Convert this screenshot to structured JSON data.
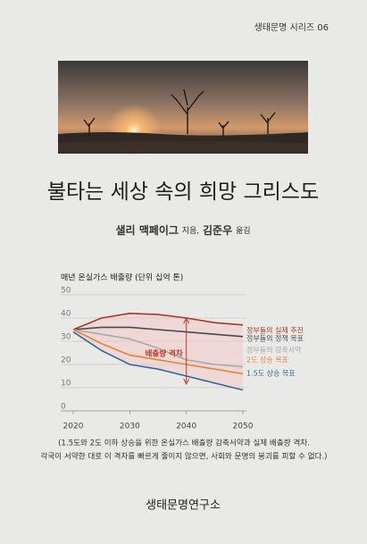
{
  "series_label": "생태문명 시리즈 06",
  "title": "불타는 세상 속의 희망 그리스도",
  "author": "샐리 맥페이그",
  "author_role": "지음,",
  "translator": "김준우",
  "translator_role": "옮김",
  "chart_data": {
    "type": "line",
    "title": "매년 온실가스 배출량 (단위 십억 톤)",
    "x": [
      2020,
      2025,
      2030,
      2035,
      2040,
      2045,
      2050
    ],
    "xlim": [
      2020,
      2050
    ],
    "xticks": [
      2020,
      2030,
      2040,
      2050
    ],
    "ylim": [
      0,
      50
    ],
    "yticks": [
      0,
      10,
      20,
      30,
      40,
      50
    ],
    "grid": true,
    "series": [
      {
        "name": "정부들의 실제 추진",
        "color": "#a8392a",
        "values": [
          35,
          40,
          42,
          41.5,
          40,
          38,
          37
        ]
      },
      {
        "name": "정부들의 정책 목표",
        "color": "#4a4a4a",
        "values": [
          35,
          36,
          36,
          35,
          34,
          33,
          32
        ]
      },
      {
        "name": "정부들의 감축서약",
        "color": "#a9a9a9",
        "values": [
          35,
          33,
          31,
          27,
          22,
          20,
          19
        ]
      },
      {
        "name": "2도 상승 목표",
        "color": "#e8833a",
        "values": [
          35,
          29,
          24,
          22,
          20,
          18,
          16
        ]
      },
      {
        "name": "1.5도 상승 목표",
        "color": "#2f6b9a",
        "values": [
          34,
          26,
          20,
          18,
          15,
          12,
          9
        ]
      }
    ],
    "annotation": "배출량 격차"
  },
  "caption": [
    "(1.5도와 2도 이하 상승을 위한 온실가스 배출량 감축서약과 실제 배출량 격차.",
    "각국이 서약한 대로 이 격차를 빠르게 줄이지 않으면, 사회와 문명의 붕괴를 피할 수 없다.)"
  ],
  "publisher": "생태문명연구소"
}
